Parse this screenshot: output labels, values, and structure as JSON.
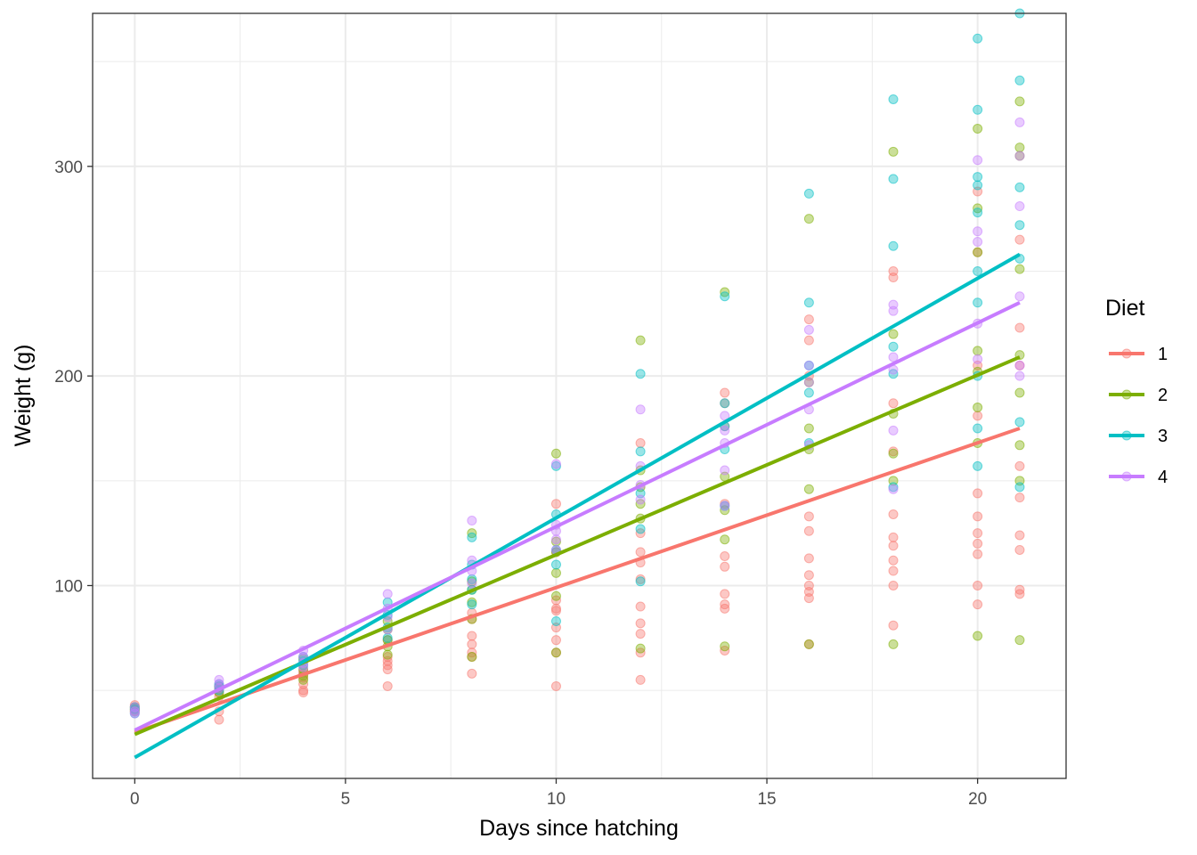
{
  "chart_data": {
    "type": "scatter",
    "xlabel": "Days since hatching",
    "ylabel": "Weight (g)",
    "xlim": [
      -1,
      22.1
    ],
    "ylim": [
      8,
      373
    ],
    "x_ticks": [
      0,
      5,
      10,
      15,
      20
    ],
    "y_ticks": [
      100,
      200,
      300
    ],
    "grid": true,
    "legend": {
      "title": "Diet",
      "position": "right"
    },
    "series": [
      {
        "name": "1",
        "color": "#F8766D",
        "fit": {
          "x": [
            0,
            21
          ],
          "y": [
            30,
            175
          ]
        },
        "points": [
          [
            0,
            42
          ],
          [
            0,
            41
          ],
          [
            0,
            40
          ],
          [
            0,
            43
          ],
          [
            2,
            51
          ],
          [
            2,
            49
          ],
          [
            2,
            47
          ],
          [
            2,
            40
          ],
          [
            2,
            36
          ],
          [
            4,
            59
          ],
          [
            4,
            56
          ],
          [
            4,
            53
          ],
          [
            4,
            50
          ],
          [
            4,
            49
          ],
          [
            4,
            58
          ],
          [
            6,
            64
          ],
          [
            6,
            62
          ],
          [
            6,
            60
          ],
          [
            6,
            52
          ],
          [
            6,
            74
          ],
          [
            6,
            66
          ],
          [
            8,
            76
          ],
          [
            8,
            72
          ],
          [
            8,
            68
          ],
          [
            8,
            66
          ],
          [
            8,
            58
          ],
          [
            8,
            84
          ],
          [
            8,
            87
          ],
          [
            10,
            93
          ],
          [
            10,
            89
          ],
          [
            10,
            88
          ],
          [
            10,
            80
          ],
          [
            10,
            74
          ],
          [
            10,
            68
          ],
          [
            10,
            52
          ],
          [
            10,
            139
          ],
          [
            10,
            116
          ],
          [
            12,
            168
          ],
          [
            12,
            125
          ],
          [
            12,
            111
          ],
          [
            12,
            103
          ],
          [
            12,
            90
          ],
          [
            12,
            82
          ],
          [
            12,
            77
          ],
          [
            12,
            68
          ],
          [
            12,
            55
          ],
          [
            12,
            116
          ],
          [
            14,
            192
          ],
          [
            14,
            187
          ],
          [
            14,
            114
          ],
          [
            14,
            109
          ],
          [
            14,
            96
          ],
          [
            14,
            91
          ],
          [
            14,
            89
          ],
          [
            14,
            69
          ],
          [
            14,
            176
          ],
          [
            14,
            139
          ],
          [
            16,
            227
          ],
          [
            16,
            217
          ],
          [
            16,
            200
          ],
          [
            16,
            133
          ],
          [
            16,
            126
          ],
          [
            16,
            113
          ],
          [
            16,
            105
          ],
          [
            16,
            100
          ],
          [
            16,
            97
          ],
          [
            16,
            94
          ],
          [
            16,
            72
          ],
          [
            18,
            250
          ],
          [
            18,
            247
          ],
          [
            18,
            187
          ],
          [
            18,
            164
          ],
          [
            18,
            134
          ],
          [
            18,
            123
          ],
          [
            18,
            119
          ],
          [
            18,
            112
          ],
          [
            18,
            107
          ],
          [
            18,
            100
          ],
          [
            18,
            81
          ],
          [
            20,
            288
          ],
          [
            20,
            259
          ],
          [
            20,
            205
          ],
          [
            20,
            181
          ],
          [
            20,
            144
          ],
          [
            20,
            133
          ],
          [
            20,
            125
          ],
          [
            20,
            120
          ],
          [
            20,
            115
          ],
          [
            20,
            100
          ],
          [
            20,
            91
          ],
          [
            21,
            265
          ],
          [
            21,
            223
          ],
          [
            21,
            205
          ],
          [
            21,
            157
          ],
          [
            21,
            142
          ],
          [
            21,
            124
          ],
          [
            21,
            117
          ],
          [
            21,
            98
          ],
          [
            21,
            96
          ]
        ]
      },
      {
        "name": "2",
        "color": "#7CAE00",
        "fit": {
          "x": [
            0,
            21
          ],
          "y": [
            29,
            209
          ]
        },
        "points": [
          [
            0,
            40
          ],
          [
            0,
            41
          ],
          [
            0,
            42
          ],
          [
            2,
            49
          ],
          [
            2,
            51
          ],
          [
            2,
            52
          ],
          [
            4,
            55
          ],
          [
            4,
            57
          ],
          [
            4,
            60
          ],
          [
            4,
            65
          ],
          [
            6,
            67
          ],
          [
            6,
            71
          ],
          [
            6,
            74
          ],
          [
            6,
            79
          ],
          [
            6,
            83
          ],
          [
            8,
            66
          ],
          [
            8,
            84
          ],
          [
            8,
            92
          ],
          [
            8,
            98
          ],
          [
            8,
            102
          ],
          [
            8,
            125
          ],
          [
            10,
            68
          ],
          [
            10,
            95
          ],
          [
            10,
            106
          ],
          [
            10,
            116
          ],
          [
            10,
            121
          ],
          [
            10,
            163
          ],
          [
            12,
            70
          ],
          [
            12,
            132
          ],
          [
            12,
            139
          ],
          [
            12,
            147
          ],
          [
            12,
            155
          ],
          [
            12,
            217
          ],
          [
            14,
            71
          ],
          [
            14,
            122
          ],
          [
            14,
            136
          ],
          [
            14,
            152
          ],
          [
            14,
            240
          ],
          [
            16,
            72
          ],
          [
            16,
            146
          ],
          [
            16,
            165
          ],
          [
            16,
            175
          ],
          [
            16,
            197
          ],
          [
            16,
            275
          ],
          [
            18,
            72
          ],
          [
            18,
            150
          ],
          [
            18,
            163
          ],
          [
            18,
            182
          ],
          [
            18,
            220
          ],
          [
            18,
            307
          ],
          [
            20,
            76
          ],
          [
            20,
            168
          ],
          [
            20,
            185
          ],
          [
            20,
            202
          ],
          [
            20,
            212
          ],
          [
            20,
            259
          ],
          [
            20,
            280
          ],
          [
            20,
            318
          ],
          [
            21,
            74
          ],
          [
            21,
            150
          ],
          [
            21,
            167
          ],
          [
            21,
            192
          ],
          [
            21,
            210
          ],
          [
            21,
            251
          ],
          [
            21,
            305
          ],
          [
            21,
            309
          ],
          [
            21,
            331
          ]
        ]
      },
      {
        "name": "3",
        "color": "#00BFC4",
        "fit": {
          "x": [
            0,
            21
          ],
          "y": [
            18,
            258
          ]
        },
        "points": [
          [
            0,
            39
          ],
          [
            0,
            41
          ],
          [
            0,
            42
          ],
          [
            2,
            50
          ],
          [
            2,
            52
          ],
          [
            2,
            53
          ],
          [
            4,
            62
          ],
          [
            4,
            64
          ],
          [
            4,
            66
          ],
          [
            6,
            75
          ],
          [
            6,
            80
          ],
          [
            6,
            86
          ],
          [
            6,
            92
          ],
          [
            8,
            91
          ],
          [
            8,
            98
          ],
          [
            8,
            103
          ],
          [
            8,
            110
          ],
          [
            8,
            123
          ],
          [
            10,
            83
          ],
          [
            10,
            110
          ],
          [
            10,
            117
          ],
          [
            10,
            134
          ],
          [
            10,
            157
          ],
          [
            12,
            102
          ],
          [
            12,
            127
          ],
          [
            12,
            144
          ],
          [
            12,
            164
          ],
          [
            12,
            201
          ],
          [
            14,
            138
          ],
          [
            14,
            165
          ],
          [
            14,
            176
          ],
          [
            14,
            187
          ],
          [
            14,
            238
          ],
          [
            16,
            168
          ],
          [
            16,
            192
          ],
          [
            16,
            205
          ],
          [
            16,
            235
          ],
          [
            16,
            287
          ],
          [
            18,
            147
          ],
          [
            18,
            201
          ],
          [
            18,
            214
          ],
          [
            18,
            262
          ],
          [
            18,
            294
          ],
          [
            18,
            332
          ],
          [
            20,
            157
          ],
          [
            20,
            175
          ],
          [
            20,
            200
          ],
          [
            20,
            235
          ],
          [
            20,
            250
          ],
          [
            20,
            278
          ],
          [
            20,
            291
          ],
          [
            20,
            295
          ],
          [
            20,
            327
          ],
          [
            20,
            361
          ],
          [
            21,
            147
          ],
          [
            21,
            178
          ],
          [
            21,
            256
          ],
          [
            21,
            272
          ],
          [
            21,
            290
          ],
          [
            21,
            341
          ],
          [
            21,
            373
          ]
        ]
      },
      {
        "name": "4",
        "color": "#C77CFF",
        "fit": {
          "x": [
            0,
            21
          ],
          "y": [
            31,
            235
          ]
        },
        "points": [
          [
            0,
            42
          ],
          [
            0,
            40
          ],
          [
            0,
            39
          ],
          [
            2,
            51
          ],
          [
            2,
            53
          ],
          [
            2,
            55
          ],
          [
            4,
            61
          ],
          [
            4,
            63
          ],
          [
            4,
            66
          ],
          [
            4,
            69
          ],
          [
            6,
            79
          ],
          [
            6,
            85
          ],
          [
            6,
            89
          ],
          [
            6,
            96
          ],
          [
            8,
            101
          ],
          [
            8,
            107
          ],
          [
            8,
            112
          ],
          [
            8,
            131
          ],
          [
            10,
            117
          ],
          [
            10,
            122
          ],
          [
            10,
            126
          ],
          [
            10,
            129
          ],
          [
            10,
            158
          ],
          [
            12,
            141
          ],
          [
            12,
            148
          ],
          [
            12,
            157
          ],
          [
            12,
            184
          ],
          [
            14,
            138
          ],
          [
            14,
            155
          ],
          [
            14,
            168
          ],
          [
            14,
            174
          ],
          [
            14,
            181
          ],
          [
            16,
            167
          ],
          [
            16,
            184
          ],
          [
            16,
            197
          ],
          [
            16,
            205
          ],
          [
            16,
            222
          ],
          [
            18,
            146
          ],
          [
            18,
            174
          ],
          [
            18,
            203
          ],
          [
            18,
            209
          ],
          [
            18,
            231
          ],
          [
            18,
            234
          ],
          [
            20,
            208
          ],
          [
            20,
            225
          ],
          [
            20,
            264
          ],
          [
            20,
            269
          ],
          [
            20,
            303
          ],
          [
            21,
            200
          ],
          [
            21,
            205
          ],
          [
            21,
            238
          ],
          [
            21,
            281
          ],
          [
            21,
            305
          ],
          [
            21,
            321
          ]
        ]
      }
    ]
  }
}
